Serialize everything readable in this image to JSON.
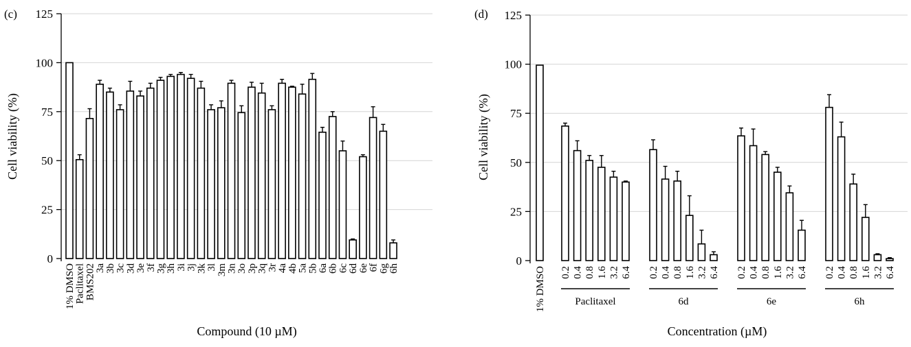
{
  "chart_data": [
    {
      "panel": "(c)",
      "type": "bar",
      "xlabel": "Compound (10 µM)",
      "ylabel": "Cell viability (%)",
      "ylim": [
        0,
        125
      ],
      "yticks": [
        0,
        25,
        50,
        75,
        100,
        125
      ],
      "grid": true,
      "categories": [
        "1% DMSO",
        "Paclitaxel",
        "BMS202",
        "3a",
        "3b",
        "3c",
        "3d",
        "3e",
        "3f",
        "3g",
        "3h",
        "3i",
        "3j",
        "3k",
        "3l",
        "3m",
        "3n",
        "3o",
        "3p",
        "3q",
        "3r",
        "4a",
        "4b",
        "5a",
        "5b",
        "6a",
        "6b",
        "6c",
        "6d",
        "6e",
        "6f",
        "6g",
        "6h"
      ],
      "values": [
        100,
        50.5,
        71.5,
        89,
        85,
        76,
        85.5,
        83,
        87,
        91,
        93,
        94,
        92,
        87,
        76,
        77,
        89.5,
        74.5,
        87.5,
        84.5,
        76,
        89.5,
        87.5,
        84,
        91.5,
        64.5,
        72.5,
        55,
        9.5,
        52,
        72,
        65,
        8
      ],
      "errors": [
        0,
        2.5,
        5,
        2,
        2,
        2.5,
        5,
        2.5,
        2.5,
        1.5,
        1,
        1,
        2,
        3.5,
        2.5,
        3.5,
        1.5,
        3.5,
        2.5,
        5,
        2,
        2,
        0.5,
        5,
        3,
        2.5,
        2.5,
        5,
        0.5,
        1,
        5.5,
        3.5,
        1.5
      ]
    },
    {
      "panel": "(d)",
      "type": "bar",
      "xlabel": "Concentration (µM)",
      "ylabel": "Cell viability (%)",
      "ylim": [
        0,
        125
      ],
      "yticks": [
        0,
        25,
        50,
        75,
        100,
        125
      ],
      "grid": true,
      "control": {
        "label": "1% DMSO",
        "value": 99.5,
        "error": 0
      },
      "groups": [
        {
          "name": "Paclitaxel",
          "x": [
            "0.2",
            "0.4",
            "0.8",
            "1.6",
            "3.2",
            "6.4"
          ],
          "values": [
            68.5,
            56,
            51,
            47.5,
            42.5,
            40
          ],
          "errors": [
            1.5,
            5,
            2.5,
            6,
            3,
            0.5
          ]
        },
        {
          "name": "6d",
          "x": [
            "0.2",
            "0.4",
            "0.8",
            "1.6",
            "3.2",
            "6.4"
          ],
          "values": [
            56.5,
            41.5,
            40.5,
            23,
            8.5,
            3
          ],
          "errors": [
            5,
            6.5,
            5,
            10,
            7,
            1.5
          ]
        },
        {
          "name": "6e",
          "x": [
            "0.2",
            "0.4",
            "0.8",
            "1.6",
            "3.2",
            "6.4"
          ],
          "values": [
            63.5,
            58.5,
            54,
            45,
            34.5,
            15.5
          ],
          "errors": [
            4,
            8.5,
            1.5,
            2.5,
            3.5,
            5
          ]
        },
        {
          "name": "6h",
          "x": [
            "0.2",
            "0.4",
            "0.8",
            "1.6",
            "3.2",
            "6.4"
          ],
          "values": [
            78,
            63,
            39,
            22,
            3,
            1
          ],
          "errors": [
            6.5,
            7.5,
            5,
            6.5,
            0.5,
            0.5
          ]
        }
      ]
    }
  ]
}
